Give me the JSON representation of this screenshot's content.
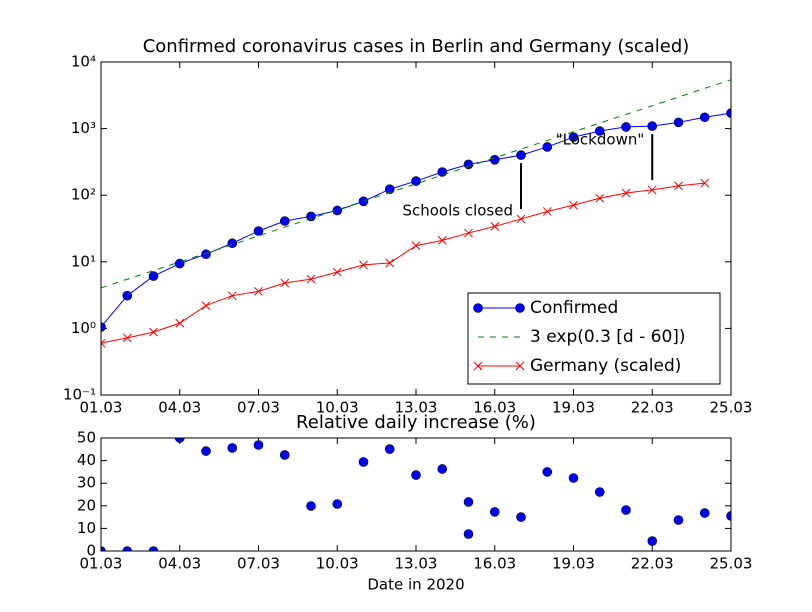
{
  "chart_data": [
    {
      "type": "line",
      "title": "Confirmed coronavirus cases in Berlin and Germany (scaled)",
      "x": [
        "01.03",
        "02.03",
        "03.03",
        "04.03",
        "05.03",
        "06.03",
        "07.03",
        "08.03",
        "09.03",
        "10.03",
        "11.03",
        "12.03",
        "13.03",
        "14.03",
        "15.03",
        "16.03",
        "17.03",
        "18.03",
        "19.03",
        "20.03",
        "21.03",
        "22.03",
        "23.03",
        "24.03",
        "25.03"
      ],
      "series": [
        {
          "name": "Confirmed",
          "color": "#0000ff",
          "marker": "o",
          "linestyle": "solid",
          "values": [
            1.05,
            3.1,
            6.1,
            9.4,
            13,
            19,
            29,
            41,
            48,
            59,
            81,
            123,
            163,
            223,
            290,
            340,
            400,
            530,
            745,
            920,
            1060,
            1090,
            1240,
            1480,
            1710
          ]
        },
        {
          "name": "3 exp(0.3 [d - 60])",
          "color": "#008000",
          "marker": null,
          "linestyle": "dashed",
          "values": [
            4.05,
            5.47,
            7.38,
            9.96,
            13.4,
            18.1,
            24.5,
            33.1,
            44.6,
            60.3,
            81.3,
            109.8,
            148.2,
            200.1,
            270.1,
            364.5,
            492.1,
            664.2,
            896.6,
            1210.3,
            1633.7,
            2205.3,
            2976.8,
            4018.3,
            5424.1
          ]
        },
        {
          "name": "Germany (scaled)",
          "color": "#ff0000",
          "marker": "x",
          "linestyle": "solid",
          "values": [
            0.6,
            0.72,
            0.88,
            1.2,
            2.2,
            3.1,
            3.6,
            4.8,
            5.5,
            7,
            9,
            9.6,
            17.5,
            21,
            27,
            34,
            44,
            57,
            71,
            90,
            108,
            120,
            138,
            152,
            null
          ]
        }
      ],
      "yscale": "log",
      "ylim": [
        0.1,
        10000
      ],
      "yticks": [
        {
          "value": 0.1,
          "label": "10⁻¹"
        },
        {
          "value": 1,
          "label": "10⁰"
        },
        {
          "value": 10,
          "label": "10¹"
        },
        {
          "value": 100,
          "label": "10²"
        },
        {
          "value": 1000,
          "label": "10³"
        },
        {
          "value": 10000,
          "label": "10⁴"
        }
      ],
      "xlim": [
        "01.03",
        "25.03"
      ],
      "xticks": [
        "01.03",
        "04.03",
        "07.03",
        "10.03",
        "13.03",
        "16.03",
        "19.03",
        "22.03",
        "25.03"
      ],
      "legend": "lower right",
      "annotations": [
        {
          "text": "Schools closed",
          "x": "17.03"
        },
        {
          "text": "\"Lockdown\"",
          "x": "22.03"
        }
      ]
    },
    {
      "type": "scatter",
      "title": "Relative daily increase (%)",
      "xlabel": "Date in 2020",
      "x": [
        "01.03",
        "02.03",
        "03.03",
        "04.03",
        "05.03",
        "06.03",
        "07.03",
        "08.03",
        "09.03",
        "10.03",
        "11.03",
        "12.03",
        "13.03",
        "14.03",
        "15.03",
        "15.03",
        "16.03",
        "17.03",
        "18.03",
        "19.03",
        "20.03",
        "21.03",
        "22.03",
        "23.03",
        "24.03",
        "25.03"
      ],
      "values": [
        0,
        0,
        0,
        50,
        44.2,
        45.6,
        46.9,
        42.5,
        19.9,
        20.8,
        39.4,
        45.1,
        33.6,
        36.3,
        21.7,
        7.5,
        17.3,
        15,
        35,
        32.3,
        26.1,
        18.1,
        4.4,
        13.7,
        16.8,
        15.5
      ],
      "color": "#0000ff",
      "ylim": [
        0,
        50
      ],
      "yticks": [
        0,
        10,
        20,
        30,
        40,
        50
      ],
      "xlim": [
        "01.03",
        "25.03"
      ],
      "xticks": [
        "01.03",
        "04.03",
        "07.03",
        "10.03",
        "13.03",
        "16.03",
        "19.03",
        "22.03",
        "25.03"
      ]
    }
  ]
}
